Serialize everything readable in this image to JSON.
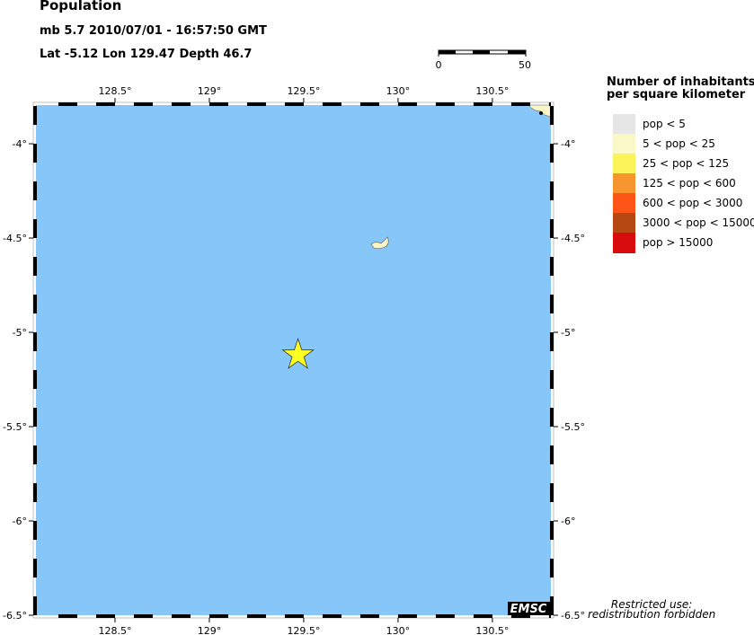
{
  "header": {
    "title": "Population",
    "event_line": "mb 5.7  2010/07/01 - 16:57:50 GMT",
    "location_line": "Lat -5.12    Lon 129.47     Depth  46.7"
  },
  "map": {
    "lon_range": [
      128.081,
      130.81
    ],
    "lat_range": [
      -6.5,
      -3.795
    ],
    "lon_ticks": [
      128.5,
      129,
      129.5,
      130,
      130.5
    ],
    "lon_tick_labels": [
      "128.5°",
      "129°",
      "129.5°",
      "130°",
      "130.5°"
    ],
    "lat_ticks": [
      -4,
      -4.5,
      -5,
      -5.5,
      -6,
      -6.5
    ],
    "lat_tick_labels": [
      "-4°",
      "-4.5°",
      "-5°",
      "-5.5°",
      "-6°",
      "-6.5°"
    ],
    "ocean_color": "#87c6f8",
    "land_color": "#fbf6c4",
    "epicenter": {
      "lat": -5.12,
      "lon": 129.47,
      "color": "#ffff22",
      "icon": "star-icon"
    },
    "scale_bar": {
      "labels": [
        "0",
        "50"
      ]
    },
    "logo": "EMSC"
  },
  "legend": {
    "title_line1": "Number of inhabitants",
    "title_line2": "per square kilometer",
    "items": [
      {
        "label": "pop < 5",
        "color": "#e6e6e6"
      },
      {
        "label": "5 < pop < 25",
        "color": "#fbf8c8"
      },
      {
        "label": "25 < pop < 125",
        "color": "#fbf35a"
      },
      {
        "label": "125 < pop < 600",
        "color": "#f7952e"
      },
      {
        "label": "600 < pop < 3000",
        "color": "#fd5417"
      },
      {
        "label": "3000 < pop < 15000",
        "color": "#b64814"
      },
      {
        "label": "pop > 15000",
        "color": "#d80c0c"
      }
    ]
  },
  "footer": {
    "restricted_line1": "Restricted use:",
    "restricted_line2": "redistribution forbidden"
  }
}
